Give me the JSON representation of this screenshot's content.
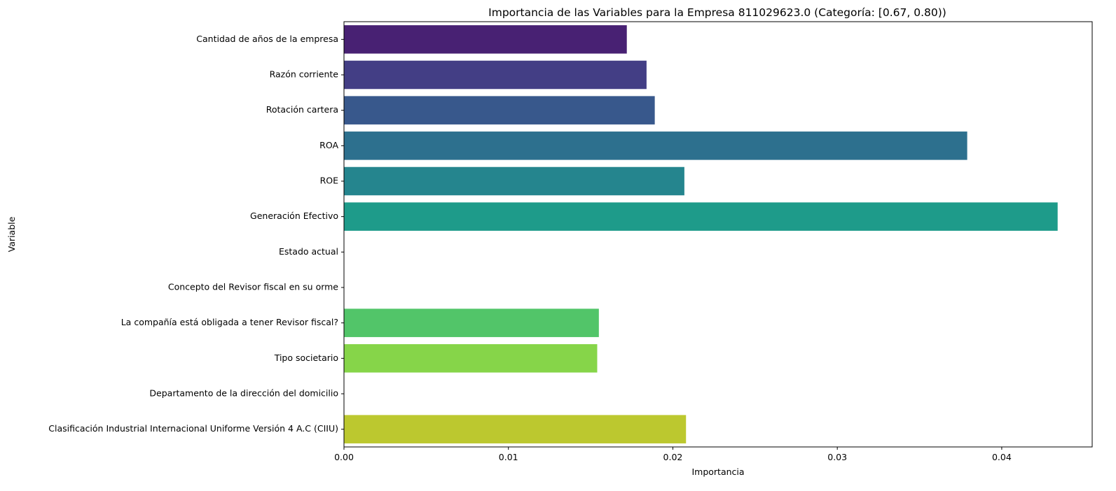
{
  "chart_data": {
    "type": "bar",
    "orientation": "horizontal",
    "title": "Importancia de las Variables para la Empresa 811029623.0 (Categoría: [0.67, 0.80))",
    "xlabel": "Importancia",
    "ylabel": "Variable",
    "xlim": [
      0,
      0.0455
    ],
    "xticks": [
      0.0,
      0.01,
      0.02,
      0.03,
      0.04
    ],
    "xtick_labels": [
      "0.00",
      "0.01",
      "0.02",
      "0.03",
      "0.04"
    ],
    "grid": false,
    "categories": [
      "Cantidad de años de la empresa",
      "Razón corriente",
      "Rotación cartera",
      "ROA",
      "ROE",
      "Generación Efectivo",
      "Estado actual",
      "Concepto del Revisor fiscal en su orme",
      "La compañía está obligada a tener Revisor fiscal?",
      "Tipo societario",
      "Departamento de la dirección del domicilio",
      "Clasificación Industrial Internacional Uniforme Versión 4 A.C (CIIU)"
    ],
    "values": [
      0.0172,
      0.0184,
      0.0189,
      0.0379,
      0.0207,
      0.0434,
      0.0,
      0.0,
      0.0155,
      0.0154,
      0.0,
      0.0208
    ],
    "colors": [
      "#482173",
      "#433e85",
      "#38588c",
      "#2d708e",
      "#25858e",
      "#1e9b8a",
      "#2ab07f",
      "#35b779",
      "#52c569",
      "#86d549",
      "#c2df23",
      "#bcc82f"
    ]
  }
}
